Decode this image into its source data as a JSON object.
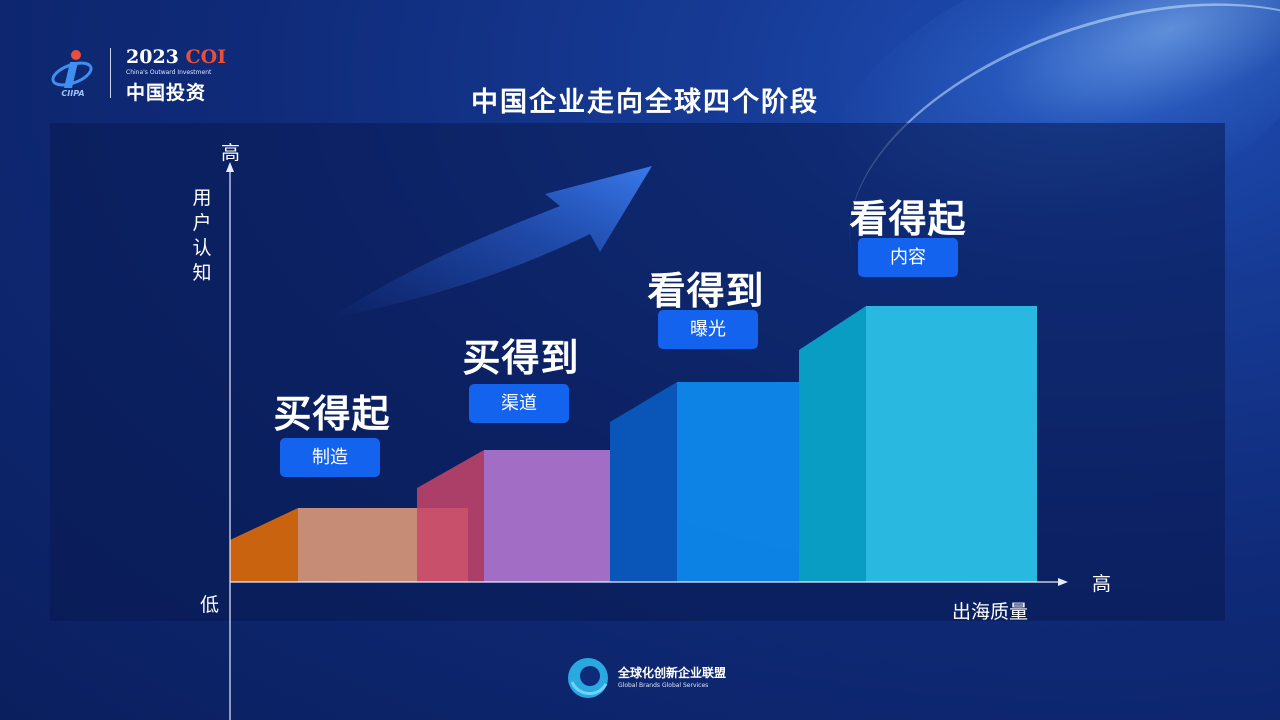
{
  "logo": {
    "year": "2023",
    "brand": "COI",
    "tagline": "China's Outward Investment",
    "name_cn": "中国投资",
    "mark_text": "CIIPA"
  },
  "title": "中国企业走向全球四个阶段",
  "axes": {
    "y_high": "高",
    "y_label": "用户认知",
    "origin": "低",
    "x_high": "高",
    "x_label": "出海质量"
  },
  "stages": [
    {
      "title": "买得起",
      "badge": "制造",
      "user_awareness_level": 1,
      "overseas_quality_level": 1
    },
    {
      "title": "买得到",
      "badge": "渠道",
      "user_awareness_level": 2,
      "overseas_quality_level": 2
    },
    {
      "title": "看得到",
      "badge": "曝光",
      "user_awareness_level": 3,
      "overseas_quality_level": 3
    },
    {
      "title": "看得起",
      "badge": "内容",
      "user_awareness_level": 4,
      "overseas_quality_level": 4
    }
  ],
  "footer": {
    "org_cn": "全球化创新企业联盟",
    "org_en": "Global Brands Global Services"
  },
  "colors": {
    "background": "#0f2a78",
    "badge": "#1463ee",
    "stage1": "#e9a07a",
    "stage2": "#b276d0",
    "stage3": "#0d8cf0",
    "stage4": "#29b8e0",
    "logo_accent": "#e9503a"
  }
}
